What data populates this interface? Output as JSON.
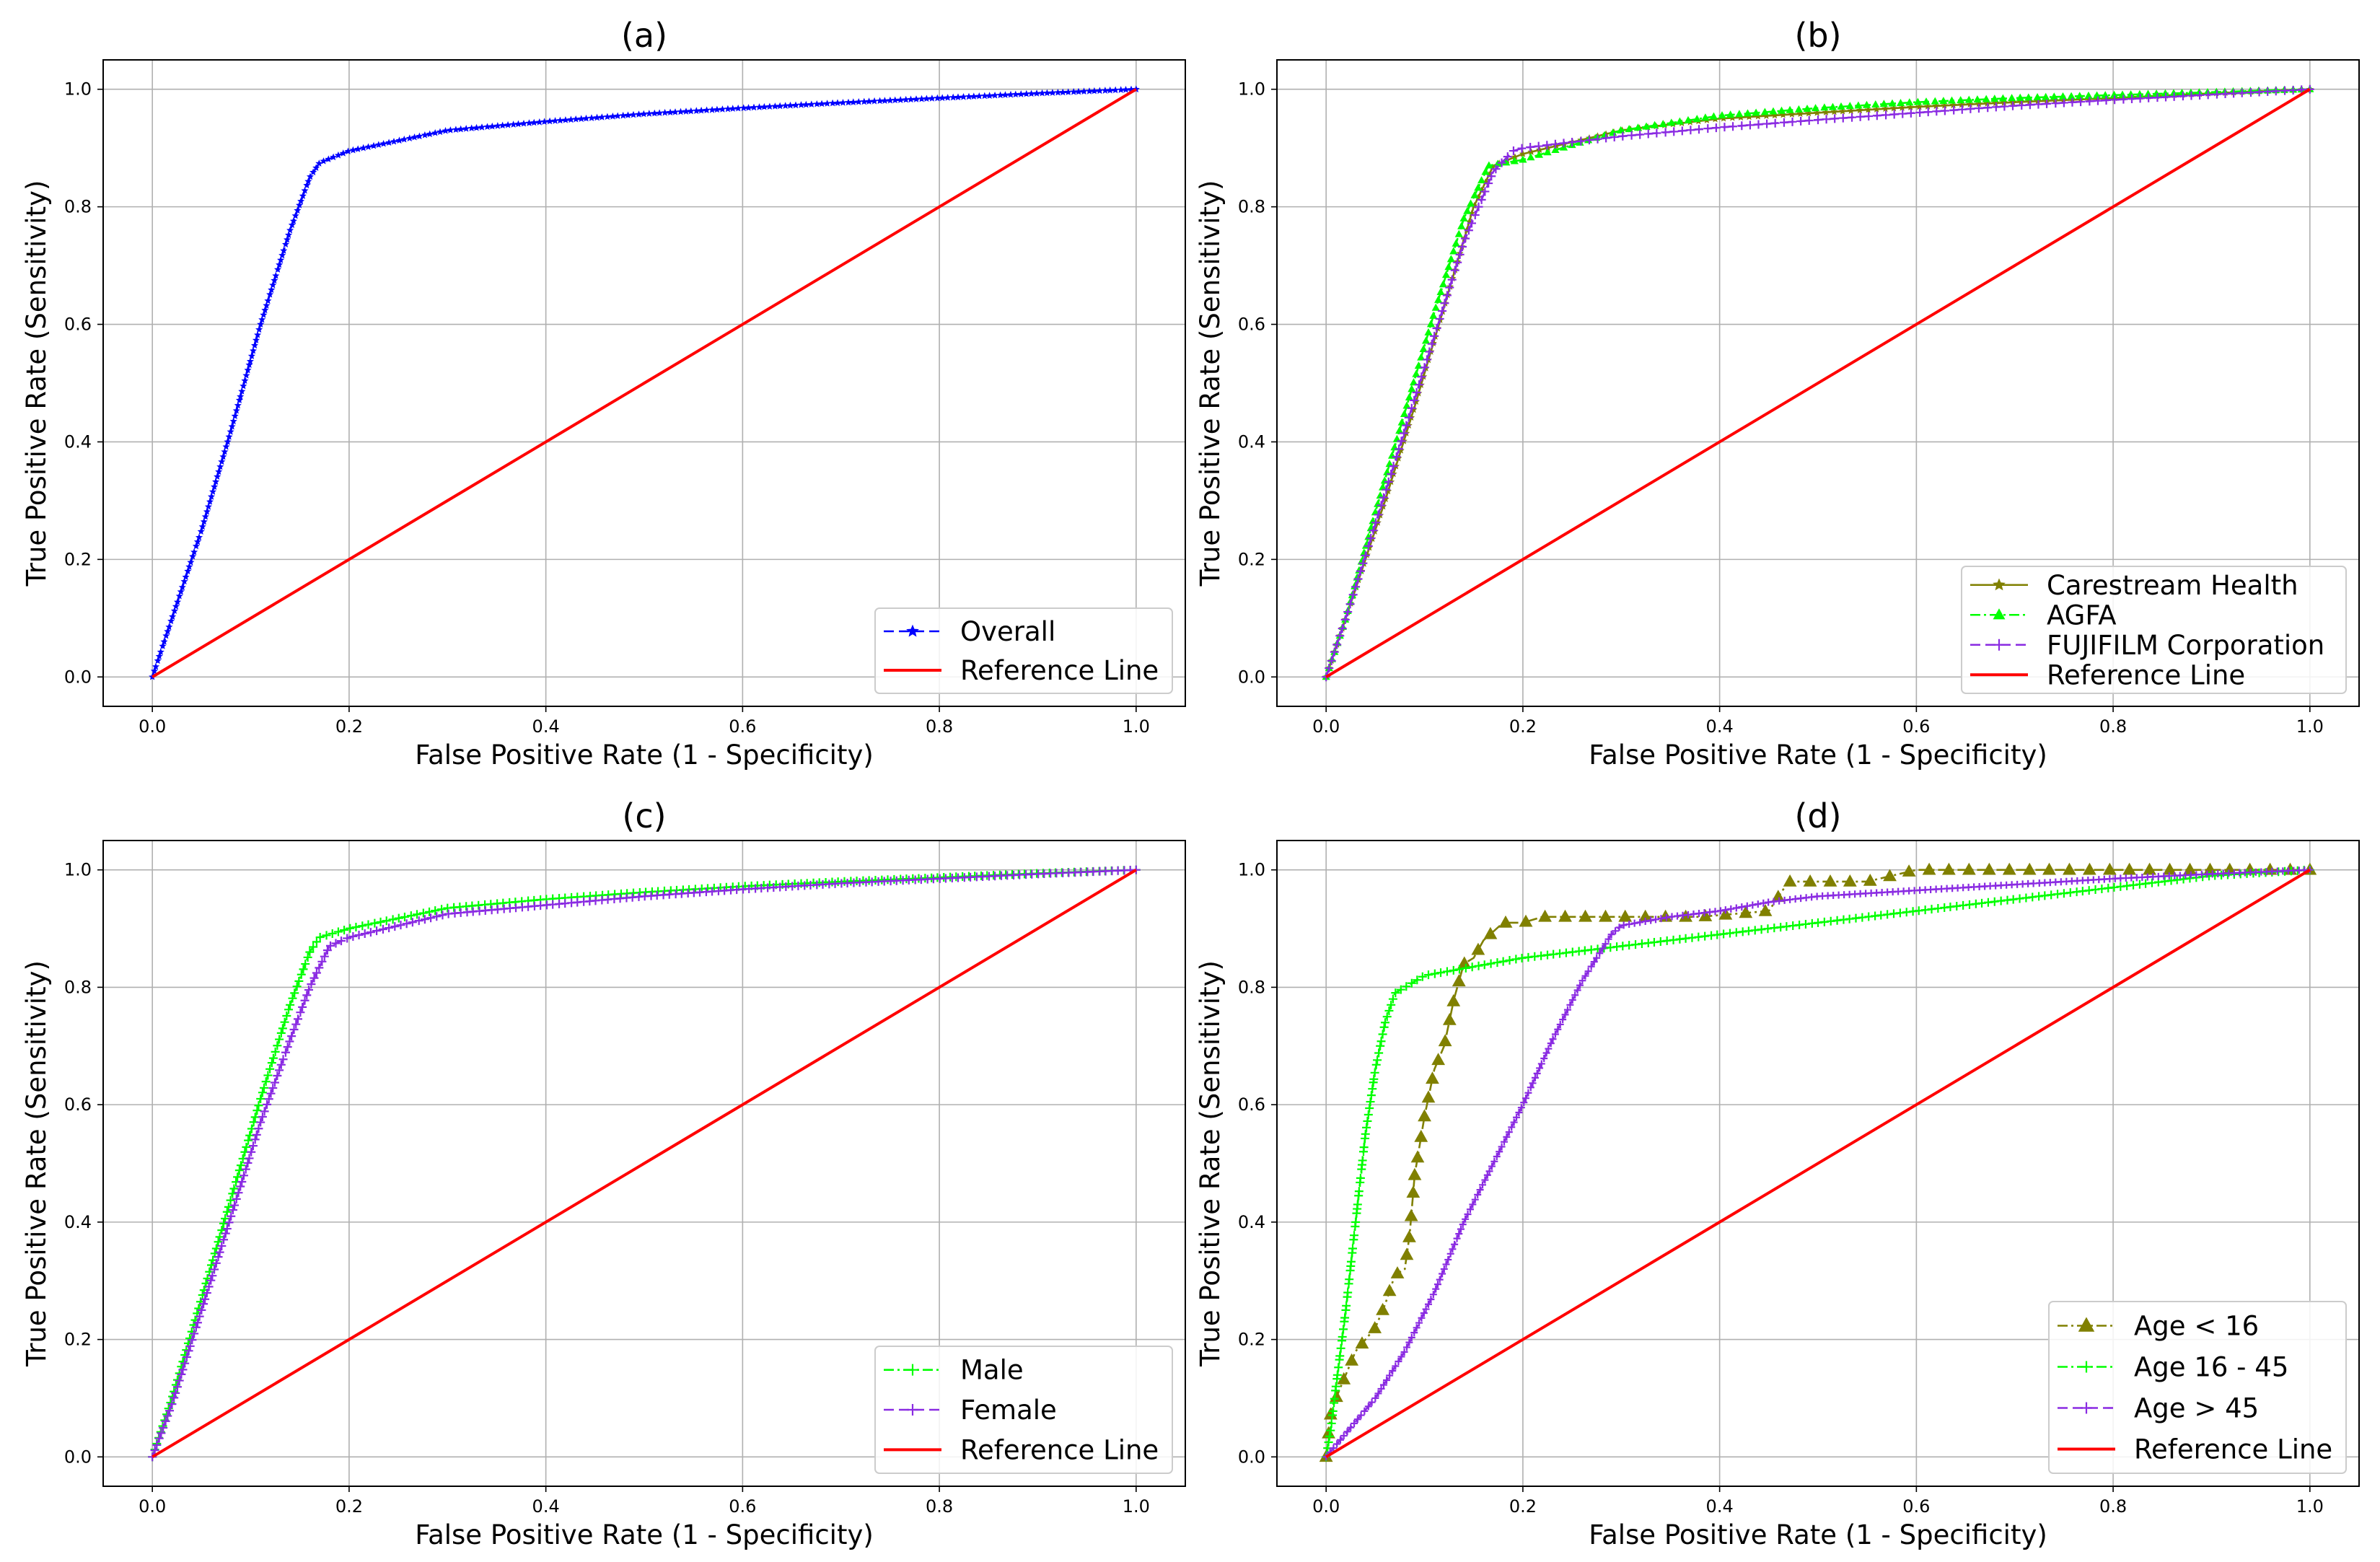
{
  "chart_data": [
    {
      "type": "line",
      "title": "(a)",
      "xlabel": "False Positive Rate (1 - Specificity)",
      "ylabel": "True Positive Rate (Sensitivity)",
      "xlim": [
        -0.05,
        1.05
      ],
      "ylim": [
        -0.05,
        1.05
      ],
      "xticks": [
        "0.0",
        "0.2",
        "0.4",
        "0.6",
        "0.8",
        "1.0"
      ],
      "yticks": [
        "0.0",
        "0.2",
        "0.4",
        "0.6",
        "0.8",
        "1.0"
      ],
      "grid": true,
      "legend_position": "lower-right",
      "series": [
        {
          "name": "Overall",
          "color": "#0000ff",
          "style": "dashed",
          "marker": "star",
          "markerSize": 4,
          "density": 260,
          "x": [
            0,
            0.02,
            0.05,
            0.08,
            0.11,
            0.14,
            0.16,
            0.17,
            0.2,
            0.3,
            0.4,
            0.5,
            0.6,
            0.7,
            0.8,
            0.9,
            1.0
          ],
          "y": [
            0,
            0.1,
            0.25,
            0.42,
            0.6,
            0.76,
            0.85,
            0.875,
            0.895,
            0.93,
            0.945,
            0.958,
            0.968,
            0.977,
            0.985,
            0.993,
            1.0
          ]
        },
        {
          "name": "Reference Line",
          "color": "#ff0000",
          "style": "solid",
          "marker": "none",
          "x": [
            0,
            1
          ],
          "y": [
            0,
            1
          ]
        }
      ]
    },
    {
      "type": "line",
      "title": "(b)",
      "xlabel": "False Positive Rate (1 - Specificity)",
      "ylabel": "True Positive Rate (Sensitivity)",
      "xlim": [
        -0.05,
        1.05
      ],
      "ylim": [
        -0.05,
        1.05
      ],
      "xticks": [
        "0.0",
        "0.2",
        "0.4",
        "0.6",
        "0.8",
        "1.0"
      ],
      "yticks": [
        "0.0",
        "0.2",
        "0.4",
        "0.6",
        "0.8",
        "1.0"
      ],
      "grid": true,
      "legend_position": "lower-right",
      "series": [
        {
          "name": "Carestream Health",
          "color": "#808000",
          "style": "solid",
          "marker": "star",
          "markerSize": 4,
          "density": 160,
          "x": [
            0,
            0.03,
            0.06,
            0.09,
            0.12,
            0.15,
            0.17,
            0.2,
            0.3,
            0.4,
            0.5,
            0.6,
            0.7,
            0.8,
            0.9,
            1.0
          ],
          "y": [
            0,
            0.15,
            0.3,
            0.46,
            0.63,
            0.8,
            0.87,
            0.89,
            0.93,
            0.95,
            0.96,
            0.97,
            0.978,
            0.985,
            0.993,
            1.0
          ]
        },
        {
          "name": "AGFA",
          "color": "#00ff00",
          "style": "dashdot",
          "marker": "triangle",
          "markerSize": 5,
          "density": 160,
          "x": [
            0,
            0.02,
            0.05,
            0.08,
            0.11,
            0.14,
            0.165,
            0.2,
            0.3,
            0.4,
            0.5,
            0.6,
            0.7,
            0.8,
            0.9,
            1.0
          ],
          "y": [
            0,
            0.1,
            0.28,
            0.45,
            0.62,
            0.78,
            0.87,
            0.88,
            0.93,
            0.955,
            0.968,
            0.978,
            0.985,
            0.99,
            0.995,
            1.0
          ]
        },
        {
          "name": "FUJIFILM Corporation",
          "color": "#8a2be2",
          "style": "dashed",
          "marker": "plus",
          "markerSize": 6,
          "density": 160,
          "x": [
            0,
            0.02,
            0.05,
            0.08,
            0.11,
            0.14,
            0.17,
            0.19,
            0.2,
            0.3,
            0.4,
            0.5,
            0.6,
            0.7,
            0.8,
            0.9,
            1.0
          ],
          "y": [
            0,
            0.1,
            0.26,
            0.42,
            0.58,
            0.74,
            0.86,
            0.895,
            0.9,
            0.92,
            0.935,
            0.948,
            0.96,
            0.972,
            0.982,
            0.991,
            1.0
          ]
        },
        {
          "name": "Reference Line",
          "color": "#ff0000",
          "style": "solid",
          "marker": "none",
          "x": [
            0,
            1
          ],
          "y": [
            0,
            1
          ]
        }
      ]
    },
    {
      "type": "line",
      "title": "(c)",
      "xlabel": "False Positive Rate (1 - Specificity)",
      "ylabel": "True Positive Rate (Sensitivity)",
      "xlim": [
        -0.05,
        1.05
      ],
      "ylim": [
        -0.05,
        1.05
      ],
      "xticks": [
        "0.0",
        "0.2",
        "0.4",
        "0.6",
        "0.8",
        "1.0"
      ],
      "yticks": [
        "0.0",
        "0.2",
        "0.4",
        "0.6",
        "0.8",
        "1.0"
      ],
      "grid": true,
      "legend_position": "lower-right",
      "series": [
        {
          "name": "Male",
          "color": "#00ff00",
          "style": "dashdot",
          "marker": "plus",
          "markerSize": 6,
          "density": 220,
          "x": [
            0,
            0.02,
            0.05,
            0.08,
            0.11,
            0.14,
            0.16,
            0.17,
            0.2,
            0.3,
            0.4,
            0.5,
            0.6,
            0.7,
            0.8,
            0.9,
            1.0
          ],
          "y": [
            0,
            0.1,
            0.27,
            0.44,
            0.61,
            0.77,
            0.86,
            0.885,
            0.9,
            0.935,
            0.95,
            0.962,
            0.972,
            0.98,
            0.987,
            0.994,
            1.0
          ]
        },
        {
          "name": "Female",
          "color": "#8a2be2",
          "style": "dashed",
          "marker": "plus",
          "markerSize": 6,
          "density": 220,
          "x": [
            0,
            0.02,
            0.05,
            0.08,
            0.11,
            0.14,
            0.16,
            0.18,
            0.2,
            0.3,
            0.4,
            0.5,
            0.6,
            0.7,
            0.8,
            0.9,
            1.0
          ],
          "y": [
            0,
            0.09,
            0.25,
            0.41,
            0.57,
            0.71,
            0.8,
            0.87,
            0.885,
            0.925,
            0.94,
            0.955,
            0.967,
            0.977,
            0.985,
            0.993,
            1.0
          ]
        },
        {
          "name": "Reference Line",
          "color": "#ff0000",
          "style": "solid",
          "marker": "none",
          "x": [
            0,
            1
          ],
          "y": [
            0,
            1
          ]
        }
      ]
    },
    {
      "type": "line",
      "title": "(d)",
      "xlabel": "False Positive Rate (1 - Specificity)",
      "ylabel": "True Positive Rate (Sensitivity)",
      "xlim": [
        -0.05,
        1.05
      ],
      "ylim": [
        -0.05,
        1.05
      ],
      "xticks": [
        "0.0",
        "0.2",
        "0.4",
        "0.6",
        "0.8",
        "1.0"
      ],
      "yticks": [
        "0.0",
        "0.2",
        "0.4",
        "0.6",
        "0.8",
        "1.0"
      ],
      "grid": true,
      "legend_position": "lower-right",
      "series": [
        {
          "name": "Age < 16",
          "color": "#808000",
          "style": "dashdot",
          "marker": "triangle",
          "markerSize": 9,
          "density": 70,
          "x": [
            0,
            0.005,
            0.01,
            0.02,
            0.03,
            0.05,
            0.06,
            0.07,
            0.08,
            0.085,
            0.09,
            0.1,
            0.11,
            0.12,
            0.13,
            0.14,
            0.15,
            0.16,
            0.18,
            0.2,
            0.22,
            0.3,
            0.35,
            0.38,
            0.45,
            0.47,
            0.55,
            0.6,
            0.7,
            0.8,
            0.9,
            1.0
          ],
          "y": [
            0,
            0.08,
            0.1,
            0.14,
            0.18,
            0.22,
            0.26,
            0.31,
            0.32,
            0.38,
            0.48,
            0.58,
            0.66,
            0.7,
            0.78,
            0.84,
            0.85,
            0.88,
            0.91,
            0.91,
            0.92,
            0.92,
            0.92,
            0.92,
            0.93,
            0.98,
            0.98,
            1.0,
            1.0,
            1.0,
            1.0,
            1.0
          ]
        },
        {
          "name": "Age 16 - 45",
          "color": "#00ff00",
          "style": "dashdot",
          "marker": "plus",
          "markerSize": 6,
          "density": 220,
          "x": [
            0,
            0.005,
            0.01,
            0.02,
            0.03,
            0.04,
            0.05,
            0.06,
            0.07,
            0.08,
            0.1,
            0.15,
            0.2,
            0.3,
            0.4,
            0.5,
            0.6,
            0.7,
            0.8,
            0.9,
            1.0
          ],
          "y": [
            0,
            0.05,
            0.12,
            0.25,
            0.4,
            0.55,
            0.66,
            0.74,
            0.79,
            0.8,
            0.82,
            0.835,
            0.85,
            0.87,
            0.89,
            0.91,
            0.93,
            0.95,
            0.97,
            0.99,
            1.0
          ]
        },
        {
          "name": "Age > 45",
          "color": "#8a2be2",
          "style": "dashed",
          "marker": "plus",
          "markerSize": 5,
          "density": 240,
          "x": [
            0,
            0.02,
            0.05,
            0.08,
            0.11,
            0.14,
            0.17,
            0.2,
            0.23,
            0.26,
            0.29,
            0.3,
            0.35,
            0.4,
            0.45,
            0.5,
            0.6,
            0.7,
            0.8,
            0.9,
            1.0
          ],
          "y": [
            0,
            0.04,
            0.1,
            0.18,
            0.28,
            0.4,
            0.5,
            0.6,
            0.71,
            0.81,
            0.89,
            0.905,
            0.92,
            0.93,
            0.945,
            0.955,
            0.965,
            0.975,
            0.985,
            0.993,
            1.0
          ]
        },
        {
          "name": "Reference Line",
          "color": "#ff0000",
          "style": "solid",
          "marker": "none",
          "x": [
            0,
            1
          ],
          "y": [
            0,
            1
          ]
        }
      ]
    }
  ]
}
